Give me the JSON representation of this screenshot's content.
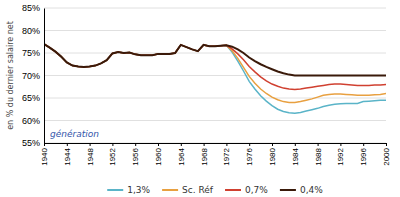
{
  "chart_data": {
    "type": "line",
    "ylabel": "en % du dernier salaire net",
    "xlabel": "génération",
    "xlim": [
      1940,
      2000
    ],
    "ylim": [
      55,
      85
    ],
    "yticks": [
      {
        "value": 55,
        "label": "55%"
      },
      {
        "value": 60,
        "label": "60%"
      },
      {
        "value": 65,
        "label": "65%"
      },
      {
        "value": 70,
        "label": "70%"
      },
      {
        "value": 75,
        "label": "75%"
      },
      {
        "value": 80,
        "label": "80%"
      },
      {
        "value": 85,
        "label": "85%"
      }
    ],
    "xticks": [
      1940,
      1944,
      1948,
      1952,
      1956,
      1960,
      1964,
      1968,
      1972,
      1976,
      1980,
      1984,
      1988,
      1992,
      1996,
      2000
    ],
    "grid": "y",
    "legend": "bottom",
    "x": [
      1940,
      1941,
      1942,
      1943,
      1944,
      1945,
      1946,
      1947,
      1948,
      1949,
      1950,
      1951,
      1952,
      1953,
      1954,
      1955,
      1956,
      1957,
      1958,
      1959,
      1960,
      1961,
      1962,
      1963,
      1964,
      1965,
      1966,
      1967,
      1968,
      1969,
      1970,
      1971,
      1972,
      1973,
      1974,
      1975,
      1976,
      1977,
      1978,
      1979,
      1980,
      1981,
      1982,
      1983,
      1984,
      1985,
      1986,
      1987,
      1988,
      1989,
      1990,
      1991,
      1992,
      1993,
      1994,
      1995,
      1996,
      1997,
      1998,
      1999,
      2000
    ],
    "series": [
      {
        "name": "1,3%",
        "color": "#5ab4c8",
        "values": [
          77.0,
          76.2,
          75.3,
          74.2,
          72.9,
          72.2,
          72.0,
          71.9,
          72.0,
          72.2,
          72.7,
          73.4,
          74.9,
          75.2,
          75.0,
          75.1,
          74.7,
          74.5,
          74.5,
          74.5,
          74.8,
          74.8,
          74.8,
          75.0,
          76.8,
          76.3,
          75.8,
          75.4,
          76.8,
          76.5,
          76.5,
          76.6,
          76.7,
          75.2,
          73.2,
          71.0,
          68.7,
          67.0,
          65.5,
          64.3,
          63.3,
          62.5,
          62.0,
          61.7,
          61.6,
          61.8,
          62.1,
          62.4,
          62.7,
          63.1,
          63.4,
          63.6,
          63.7,
          63.8,
          63.8,
          63.8,
          64.2,
          64.3,
          64.4,
          64.5,
          64.5
        ]
      },
      {
        "name": "Sc. Réf",
        "color": "#e8a040",
        "values": [
          77.0,
          76.2,
          75.3,
          74.2,
          72.9,
          72.2,
          72.0,
          71.9,
          72.0,
          72.2,
          72.7,
          73.4,
          74.9,
          75.2,
          75.0,
          75.1,
          74.7,
          74.5,
          74.5,
          74.5,
          74.8,
          74.8,
          74.8,
          75.0,
          76.8,
          76.3,
          75.8,
          75.4,
          76.8,
          76.5,
          76.5,
          76.6,
          76.7,
          75.5,
          73.8,
          71.8,
          69.8,
          68.3,
          67.0,
          66.0,
          65.2,
          64.6,
          64.2,
          64.0,
          64.0,
          64.2,
          64.5,
          64.8,
          65.2,
          65.6,
          65.8,
          65.9,
          65.9,
          65.8,
          65.7,
          65.6,
          65.6,
          65.6,
          65.7,
          65.8,
          66.0
        ]
      },
      {
        "name": "0,7%",
        "color": "#d04030",
        "values": [
          77.0,
          76.2,
          75.3,
          74.2,
          72.9,
          72.2,
          72.0,
          71.9,
          72.0,
          72.2,
          72.7,
          73.4,
          74.9,
          75.2,
          75.0,
          75.1,
          74.7,
          74.5,
          74.5,
          74.5,
          74.8,
          74.8,
          74.8,
          75.0,
          76.8,
          76.3,
          75.8,
          75.4,
          76.8,
          76.5,
          76.5,
          76.6,
          76.7,
          75.9,
          74.8,
          73.5,
          72.0,
          70.8,
          69.7,
          68.8,
          68.1,
          67.6,
          67.2,
          67.0,
          66.9,
          67.0,
          67.2,
          67.4,
          67.6,
          67.8,
          68.0,
          68.1,
          68.1,
          68.0,
          67.9,
          67.8,
          67.8,
          67.8,
          67.9,
          67.9,
          68.0
        ]
      },
      {
        "name": "0,4%",
        "color": "#3a1a0a",
        "values": [
          77.0,
          76.2,
          75.3,
          74.2,
          72.9,
          72.2,
          72.0,
          71.9,
          72.0,
          72.2,
          72.7,
          73.4,
          74.9,
          75.2,
          75.0,
          75.1,
          74.7,
          74.5,
          74.5,
          74.5,
          74.8,
          74.8,
          74.8,
          75.0,
          76.8,
          76.3,
          75.8,
          75.4,
          76.8,
          76.5,
          76.5,
          76.6,
          76.7,
          76.4,
          75.8,
          75.0,
          74.0,
          73.2,
          72.5,
          71.9,
          71.4,
          70.9,
          70.5,
          70.2,
          70.0,
          70.0,
          70.0,
          70.0,
          70.0,
          70.0,
          70.0,
          70.0,
          70.0,
          70.0,
          70.0,
          70.0,
          70.0,
          70.0,
          70.0,
          70.0,
          70.0
        ]
      }
    ]
  }
}
